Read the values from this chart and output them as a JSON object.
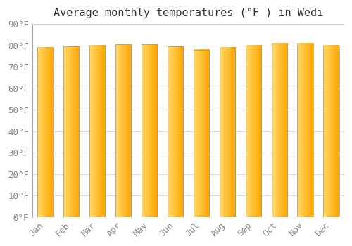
{
  "title": "Average monthly temperatures (°F ) in Wedi",
  "months": [
    "Jan",
    "Feb",
    "Mar",
    "Apr",
    "May",
    "Jun",
    "Jul",
    "Aug",
    "Sep",
    "Oct",
    "Nov",
    "Dec"
  ],
  "values": [
    79,
    79.5,
    80,
    80.5,
    80.5,
    79.5,
    78,
    79,
    80,
    81,
    81,
    80
  ],
  "ylim": [
    0,
    90
  ],
  "yticks": [
    0,
    10,
    20,
    30,
    40,
    50,
    60,
    70,
    80,
    90
  ],
  "bar_color_left": "#FFD966",
  "bar_color_right": "#FFA500",
  "bar_border_color": "#999999",
  "background_color": "#FFFFFF",
  "grid_color": "#DDDDDD",
  "title_fontsize": 11,
  "tick_fontsize": 9
}
